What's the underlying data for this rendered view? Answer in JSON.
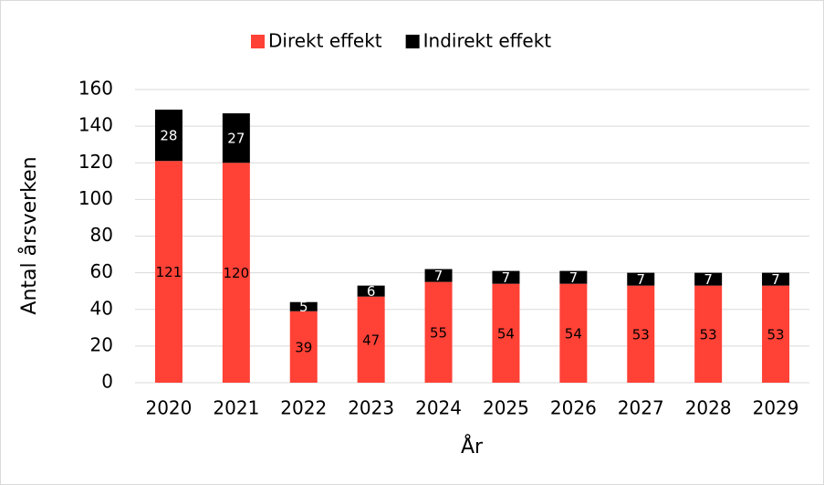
{
  "chart_data": {
    "type": "stacked_bar",
    "categories": [
      "2020",
      "2021",
      "2022",
      "2023",
      "2024",
      "2025",
      "2026",
      "2027",
      "2028",
      "2029"
    ],
    "series": [
      {
        "name": "Direkt effekt",
        "color": "#ff4136",
        "values": [
          121,
          120,
          39,
          47,
          55,
          54,
          54,
          53,
          53,
          53
        ]
      },
      {
        "name": "Indirekt effekt",
        "color": "#000000",
        "values": [
          28,
          27,
          5,
          6,
          7,
          7,
          7,
          7,
          7,
          7
        ]
      }
    ],
    "ylabel": "Antal årsverken",
    "xlabel": "År",
    "ylim": [
      0,
      160
    ],
    "yticks": [
      0,
      20,
      40,
      60,
      80,
      100,
      120,
      140,
      160
    ],
    "grid": true,
    "legend": "top"
  }
}
